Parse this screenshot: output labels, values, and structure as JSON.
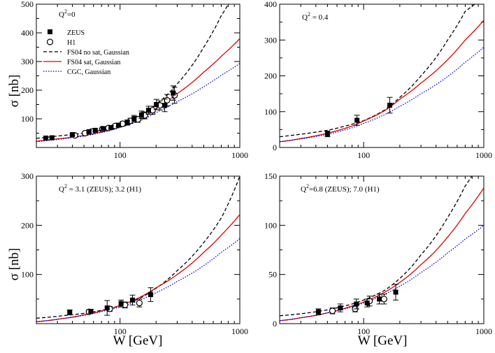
{
  "figure": {
    "ylabel": "σ [nb]",
    "xlabel": "W [GeV]"
  },
  "legend": {
    "zeus": "ZEUS",
    "h1": "H1",
    "fs04_nosat": "FS04 no sat, Gaussian",
    "fs04_sat": "FS04 sat, Gaussian",
    "cgc": "CGC, Gaussian"
  },
  "colors": {
    "fs04_nosat": "#000000",
    "fs04_sat": "#e00000",
    "cgc": "#0000dd"
  },
  "chart_data": [
    {
      "type": "line",
      "panel": "top-left",
      "annotation_main": "Q",
      "annotation_sup": "2",
      "annotation_rest": "=0",
      "xscale": "log",
      "xlim": [
        20,
        1000
      ],
      "ylim": [
        0,
        500
      ],
      "xticks": [
        100,
        1000
      ],
      "xtick_labels": [
        "100",
        "1000"
      ],
      "yticks": [
        100,
        200,
        300,
        400,
        500
      ],
      "ytick_labels": [
        "100",
        "200",
        "300",
        "400",
        "500"
      ],
      "zeus": [
        [
          24,
          33,
          0
        ],
        [
          27,
          34,
          0
        ],
        [
          40,
          45,
          4
        ],
        [
          55,
          55,
          4
        ],
        [
          62,
          60,
          5
        ],
        [
          72,
          66,
          6
        ],
        [
          84,
          70,
          6
        ],
        [
          97,
          78,
          7
        ],
        [
          115,
          87,
          9
        ],
        [
          131,
          101,
          11
        ],
        [
          151,
          114,
          13
        ],
        [
          173,
          130,
          14
        ],
        [
          201,
          150,
          18
        ],
        [
          236,
          147,
          22
        ],
        [
          278,
          190,
          25
        ]
      ],
      "h1": [
        [
          42,
          42,
          4
        ],
        [
          51,
          50,
          4
        ],
        [
          58,
          56,
          5
        ],
        [
          71,
          64,
          5
        ],
        [
          80,
          68,
          6
        ],
        [
          91,
          75,
          6
        ],
        [
          105,
          83,
          8
        ],
        [
          122,
          93,
          9
        ],
        [
          141,
          98,
          10
        ],
        [
          161,
          112,
          12
        ],
        [
          187,
          130,
          14
        ],
        [
          215,
          147,
          16
        ],
        [
          247,
          165,
          20
        ],
        [
          285,
          182,
          28
        ]
      ],
      "series": [
        {
          "name": "FS04 no sat, Gaussian",
          "style": "dashed",
          "x": [
            20,
            30,
            50,
            80,
            100,
            150,
            200,
            300,
            500,
            700,
            1000
          ],
          "y": [
            32,
            40,
            50,
            65,
            77,
            108,
            150,
            222,
            350,
            460,
            570
          ]
        },
        {
          "name": "FS04 sat, Gaussian",
          "style": "solid",
          "x": [
            20,
            30,
            50,
            80,
            100,
            150,
            200,
            300,
            500,
            700,
            1000
          ],
          "y": [
            22,
            30,
            42,
            60,
            72,
            101,
            135,
            188,
            263,
            318,
            380
          ]
        },
        {
          "name": "CGC, Gaussian",
          "style": "dotted",
          "x": [
            20,
            30,
            50,
            80,
            100,
            150,
            200,
            300,
            500,
            700,
            1000
          ],
          "y": [
            20,
            28,
            40,
            58,
            70,
            95,
            122,
            160,
            212,
            252,
            293
          ]
        }
      ]
    },
    {
      "type": "line",
      "panel": "top-right",
      "annotation_main": "Q",
      "annotation_sup": "2",
      "annotation_rest": " = 0.4",
      "xscale": "log",
      "xlim": [
        20,
        1000
      ],
      "ylim": [
        0,
        400
      ],
      "xticks": [
        100,
        1000
      ],
      "xtick_labels": [
        "100",
        "1000"
      ],
      "yticks": [
        0,
        100,
        200,
        300,
        400
      ],
      "ytick_labels": [
        "0",
        "100",
        "200",
        "300",
        "400"
      ],
      "zeus": [
        [
          50,
          38,
          8
        ],
        [
          88,
          76,
          14
        ],
        [
          165,
          118,
          22
        ]
      ],
      "h1": [],
      "series": [
        {
          "name": "FS04 no sat, Gaussian",
          "style": "dashed",
          "x": [
            20,
            30,
            50,
            80,
            100,
            150,
            200,
            300,
            500,
            700,
            1000
          ],
          "y": [
            30,
            37,
            48,
            65,
            75,
            105,
            140,
            200,
            300,
            380,
            420
          ]
        },
        {
          "name": "FS04 sat, Gaussian",
          "style": "solid",
          "x": [
            20,
            30,
            50,
            80,
            100,
            150,
            200,
            300,
            500,
            700,
            1000
          ],
          "y": [
            16,
            25,
            40,
            60,
            74,
            103,
            135,
            180,
            245,
            300,
            355
          ]
        },
        {
          "name": "CGC, Gaussian",
          "style": "dotted",
          "x": [
            20,
            30,
            50,
            80,
            100,
            150,
            200,
            300,
            500,
            700,
            1000
          ],
          "y": [
            16,
            24,
            37,
            55,
            67,
            92,
            115,
            150,
            198,
            238,
            280
          ]
        }
      ]
    },
    {
      "type": "line",
      "panel": "bottom-left",
      "annotation_main": "Q",
      "annotation_sup": "2",
      "annotation_rest": " = 3.1 (ZEUS); 3.2 (H1)",
      "xscale": "log",
      "xlim": [
        20,
        1000
      ],
      "ylim": [
        0,
        300
      ],
      "xticks": [
        100,
        1000
      ],
      "xtick_labels": [
        "100",
        "1000"
      ],
      "yticks": [
        100,
        200,
        300
      ],
      "ytick_labels": [
        "100",
        "200",
        "300"
      ],
      "zeus": [
        [
          38,
          23,
          5
        ],
        [
          57,
          25,
          4
        ],
        [
          78,
          32,
          15
        ],
        [
          102,
          41,
          7
        ],
        [
          127,
          48,
          10
        ],
        [
          180,
          59,
          14
        ]
      ],
      "h1": [
        [
          55,
          24,
          4
        ],
        [
          82,
          30,
          5
        ],
        [
          110,
          38,
          6
        ],
        [
          145,
          42,
          8
        ]
      ],
      "series": [
        {
          "name": "FS04 no sat, Gaussian",
          "style": "dashed",
          "x": [
            20,
            30,
            50,
            80,
            100,
            150,
            200,
            300,
            500,
            700,
            1000
          ],
          "y": [
            11,
            15,
            21,
            30,
            36,
            53,
            72,
            108,
            165,
            215,
            300
          ]
        },
        {
          "name": "FS04 sat, Gaussian",
          "style": "solid",
          "x": [
            20,
            30,
            50,
            80,
            100,
            150,
            200,
            300,
            500,
            700,
            1000
          ],
          "y": [
            4,
            9,
            18,
            30,
            37,
            55,
            73,
            100,
            145,
            180,
            222
          ]
        },
        {
          "name": "CGC, Gaussian",
          "style": "dotted",
          "x": [
            20,
            30,
            50,
            80,
            100,
            150,
            200,
            300,
            500,
            700,
            1000
          ],
          "y": [
            4,
            9,
            17,
            28,
            34,
            49,
            63,
            86,
            118,
            145,
            173
          ]
        }
      ]
    },
    {
      "type": "line",
      "panel": "bottom-right",
      "annotation_main": "Q",
      "annotation_sup": "2",
      "annotation_rest": "=6.8 (ZEUS); 7.0 (H1)",
      "xscale": "log",
      "xlim": [
        20,
        1000
      ],
      "ylim": [
        0,
        150
      ],
      "xticks": [
        100,
        1000
      ],
      "xtick_labels": [
        "100",
        "1000"
      ],
      "yticks": [
        0,
        50,
        100,
        150
      ],
      "ytick_labels": [
        "0",
        "50",
        "100",
        "150"
      ],
      "zeus": [
        [
          42,
          12,
          3
        ],
        [
          64,
          16,
          4
        ],
        [
          87,
          20,
          5
        ],
        [
          107,
          21,
          4
        ],
        [
          135,
          25,
          5
        ],
        [
          185,
          32,
          8
        ]
      ],
      "h1": [
        [
          55,
          13,
          3
        ],
        [
          85,
          15,
          3
        ],
        [
          112,
          23,
          5
        ],
        [
          148,
          25,
          5
        ]
      ],
      "series": [
        {
          "name": "FS04 no sat, Gaussian",
          "style": "dashed",
          "x": [
            20,
            30,
            50,
            80,
            100,
            150,
            200,
            300,
            500,
            700,
            1000
          ],
          "y": [
            8,
            10,
            14,
            20,
            24,
            34,
            46,
            70,
            108,
            140,
            170
          ]
        },
        {
          "name": "FS04 sat, Gaussian",
          "style": "solid",
          "x": [
            20,
            30,
            50,
            80,
            100,
            150,
            200,
            300,
            500,
            700,
            1000
          ],
          "y": [
            3,
            6,
            11,
            18,
            22,
            32,
            42,
            60,
            88,
            112,
            138
          ]
        },
        {
          "name": "CGC, Gaussian",
          "style": "dotted",
          "x": [
            20,
            30,
            50,
            80,
            100,
            150,
            200,
            300,
            500,
            700,
            1000
          ],
          "y": [
            3,
            6,
            11,
            17,
            21,
            30,
            38,
            52,
            72,
            86,
            100
          ]
        }
      ]
    }
  ]
}
